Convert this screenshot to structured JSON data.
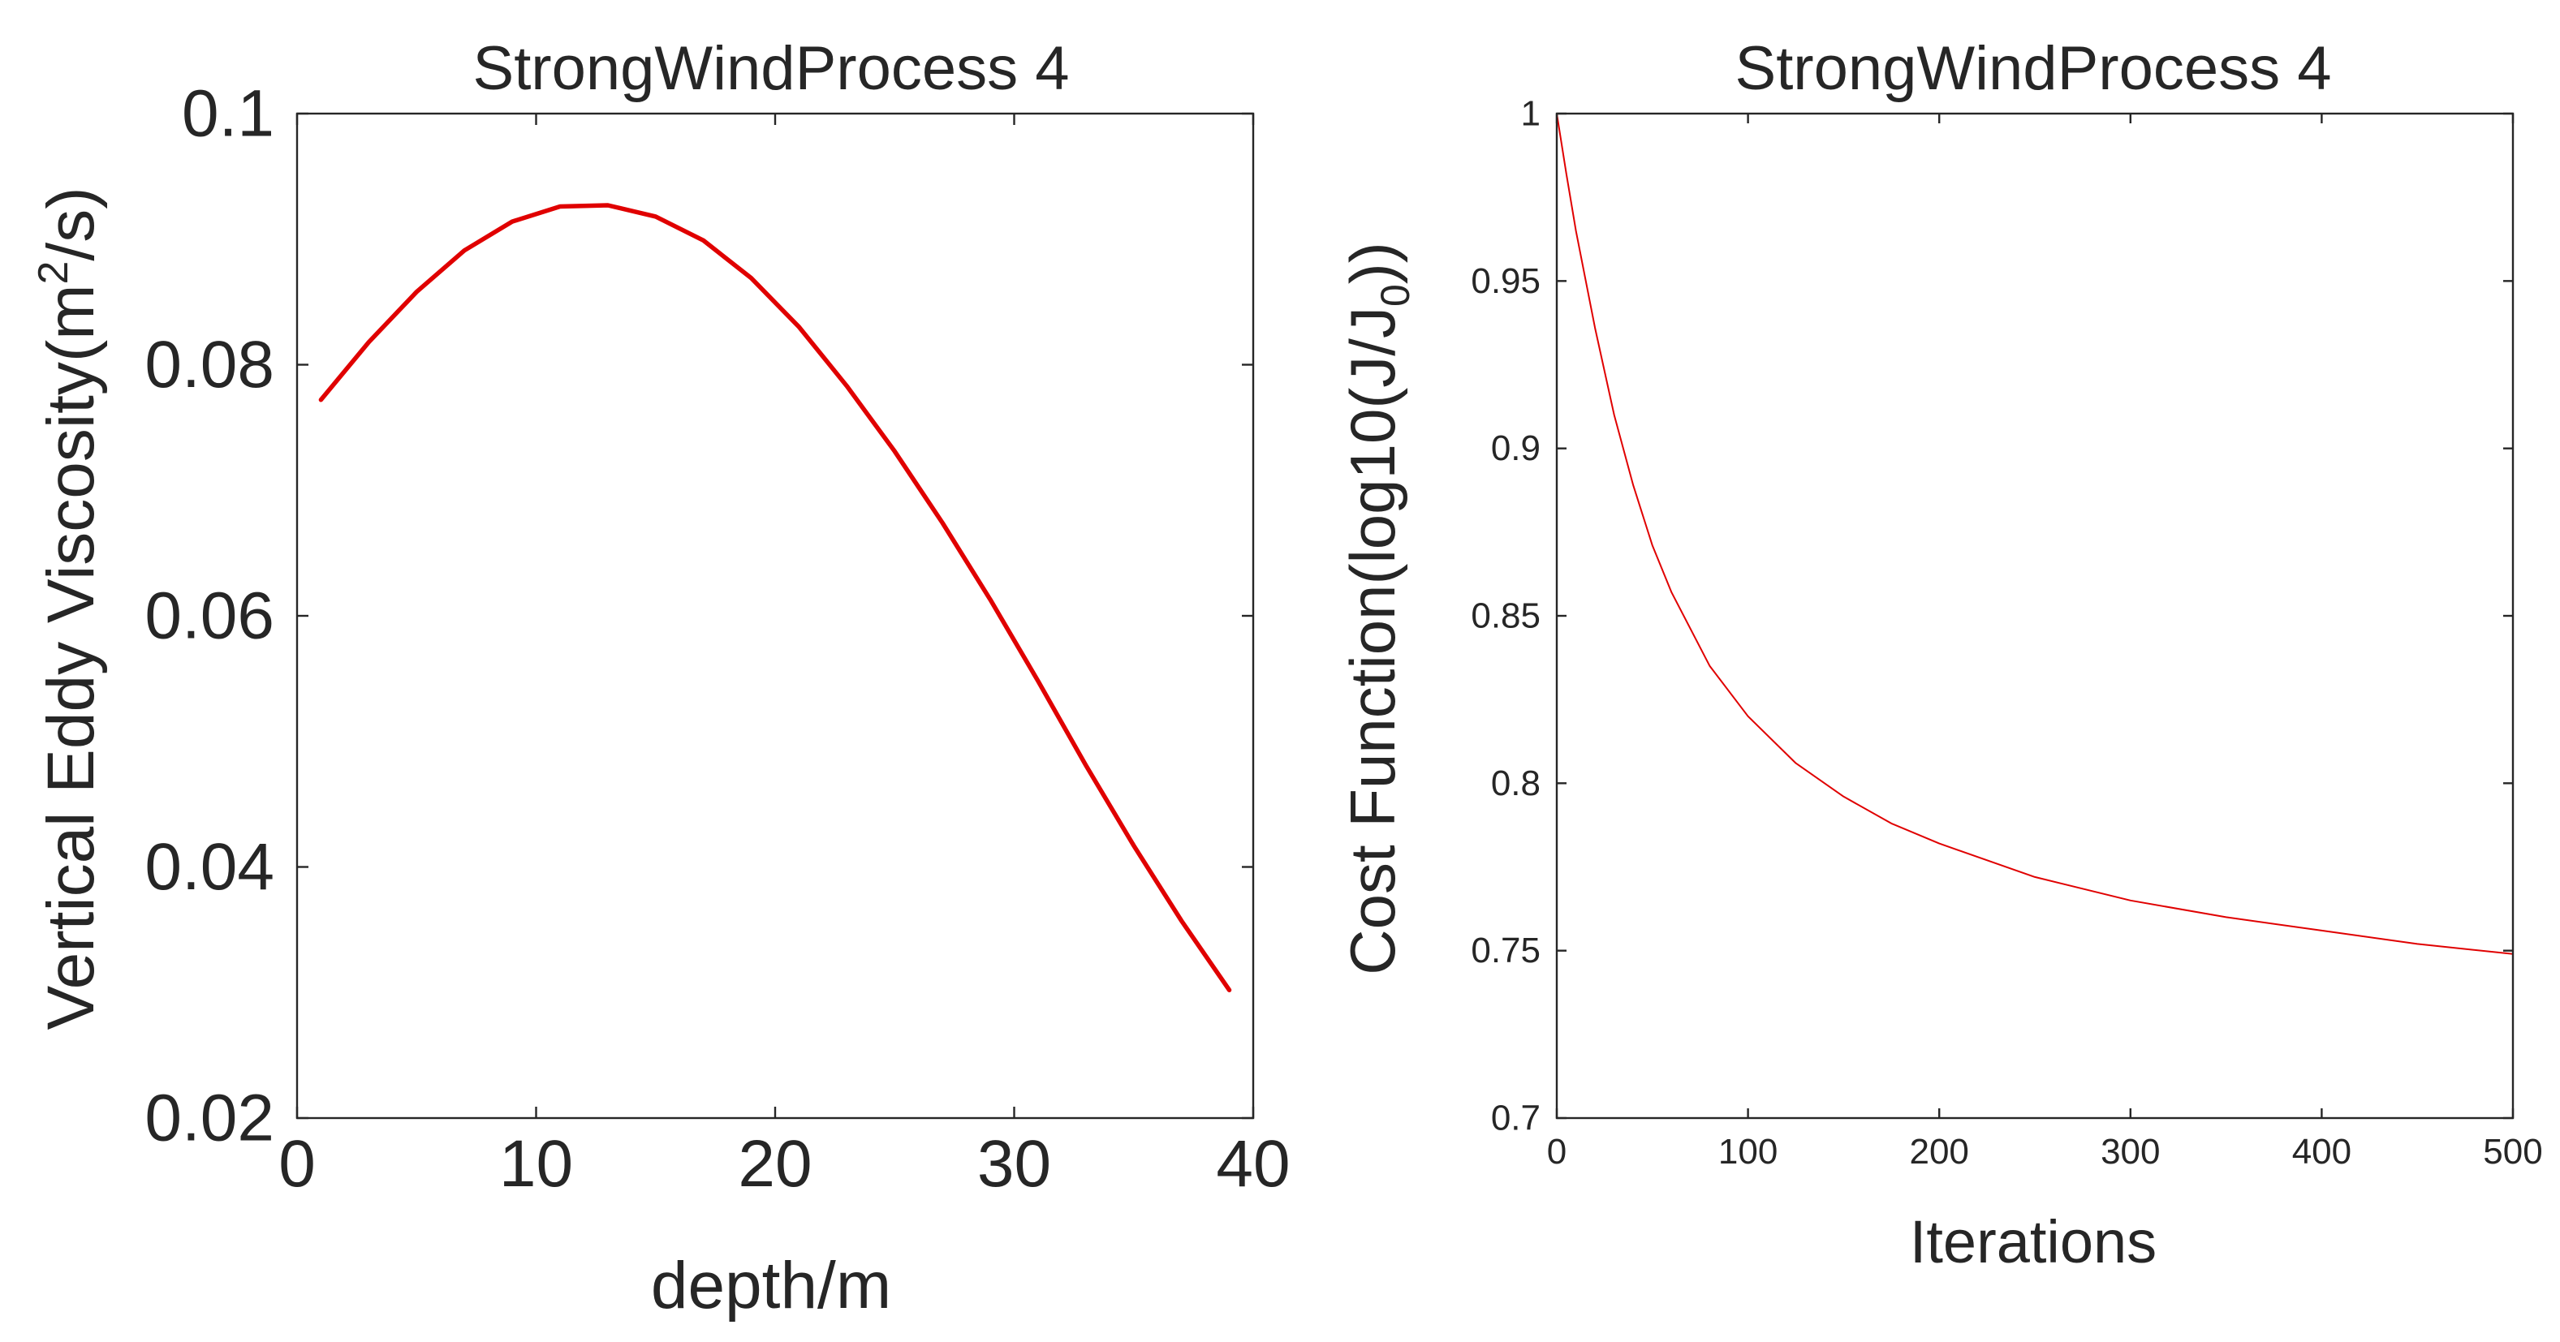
{
  "figure": {
    "background": "#ffffff",
    "axis_color": "#262626"
  },
  "chart_data": [
    {
      "type": "line",
      "title": "StrongWindProcess 4",
      "xlabel": "depth/m",
      "ylabel": {
        "prefix": "Vertical Eddy Viscosity(m",
        "superscript": "2",
        "suffix": "/s)"
      },
      "xlim": [
        0,
        40
      ],
      "ylim": [
        0.02,
        0.1
      ],
      "xticks": [
        0,
        10,
        20,
        30,
        40
      ],
      "xtick_labels": [
        "0",
        "10",
        "20",
        "30",
        "40"
      ],
      "yticks": [
        0.02,
        0.04,
        0.06,
        0.08,
        0.1
      ],
      "ytick_labels": [
        "0.02",
        "0.04",
        "0.06",
        "0.08",
        "0.1"
      ],
      "grid": false,
      "series": [
        {
          "name": "viscosity",
          "color": "#e00000",
          "line_width": 5.5,
          "x": [
            1,
            3,
            5,
            7,
            9,
            11,
            13,
            15,
            17,
            19,
            21,
            23,
            25,
            27,
            29,
            31,
            33,
            35,
            37,
            39
          ],
          "y": [
            0.0772,
            0.0818,
            0.0858,
            0.0891,
            0.0914,
            0.0926,
            0.0927,
            0.0918,
            0.0899,
            0.0869,
            0.083,
            0.0783,
            0.0731,
            0.0674,
            0.0613,
            0.0548,
            0.0481,
            0.0417,
            0.0357,
            0.0302
          ]
        }
      ]
    },
    {
      "type": "line",
      "title": "StrongWindProcess 4",
      "xlabel": "Iterations",
      "ylabel": {
        "prefix": "Cost Function(log10(J/J",
        "subscript": "0",
        "suffix": "))"
      },
      "xlim": [
        0,
        500
      ],
      "ylim": [
        0.7,
        1
      ],
      "xticks": [
        0,
        100,
        200,
        300,
        400,
        500
      ],
      "xtick_labels": [
        "0",
        "100",
        "200",
        "300",
        "400",
        "500"
      ],
      "yticks": [
        0.7,
        0.75,
        0.8,
        0.85,
        0.9,
        0.95,
        1
      ],
      "ytick_labels": [
        "0.7",
        "0.75",
        "0.8",
        "0.85",
        "0.9",
        "0.95",
        "1"
      ],
      "grid": false,
      "series": [
        {
          "name": "cost",
          "color": "#e00000",
          "line_width": 2,
          "x": [
            0,
            5,
            10,
            20,
            30,
            40,
            50,
            60,
            80,
            100,
            125,
            150,
            175,
            200,
            250,
            300,
            350,
            400,
            450,
            500
          ],
          "y": [
            1.0,
            0.982,
            0.965,
            0.936,
            0.91,
            0.889,
            0.871,
            0.857,
            0.835,
            0.82,
            0.806,
            0.796,
            0.788,
            0.782,
            0.772,
            0.765,
            0.76,
            0.756,
            0.752,
            0.749
          ]
        }
      ]
    }
  ]
}
